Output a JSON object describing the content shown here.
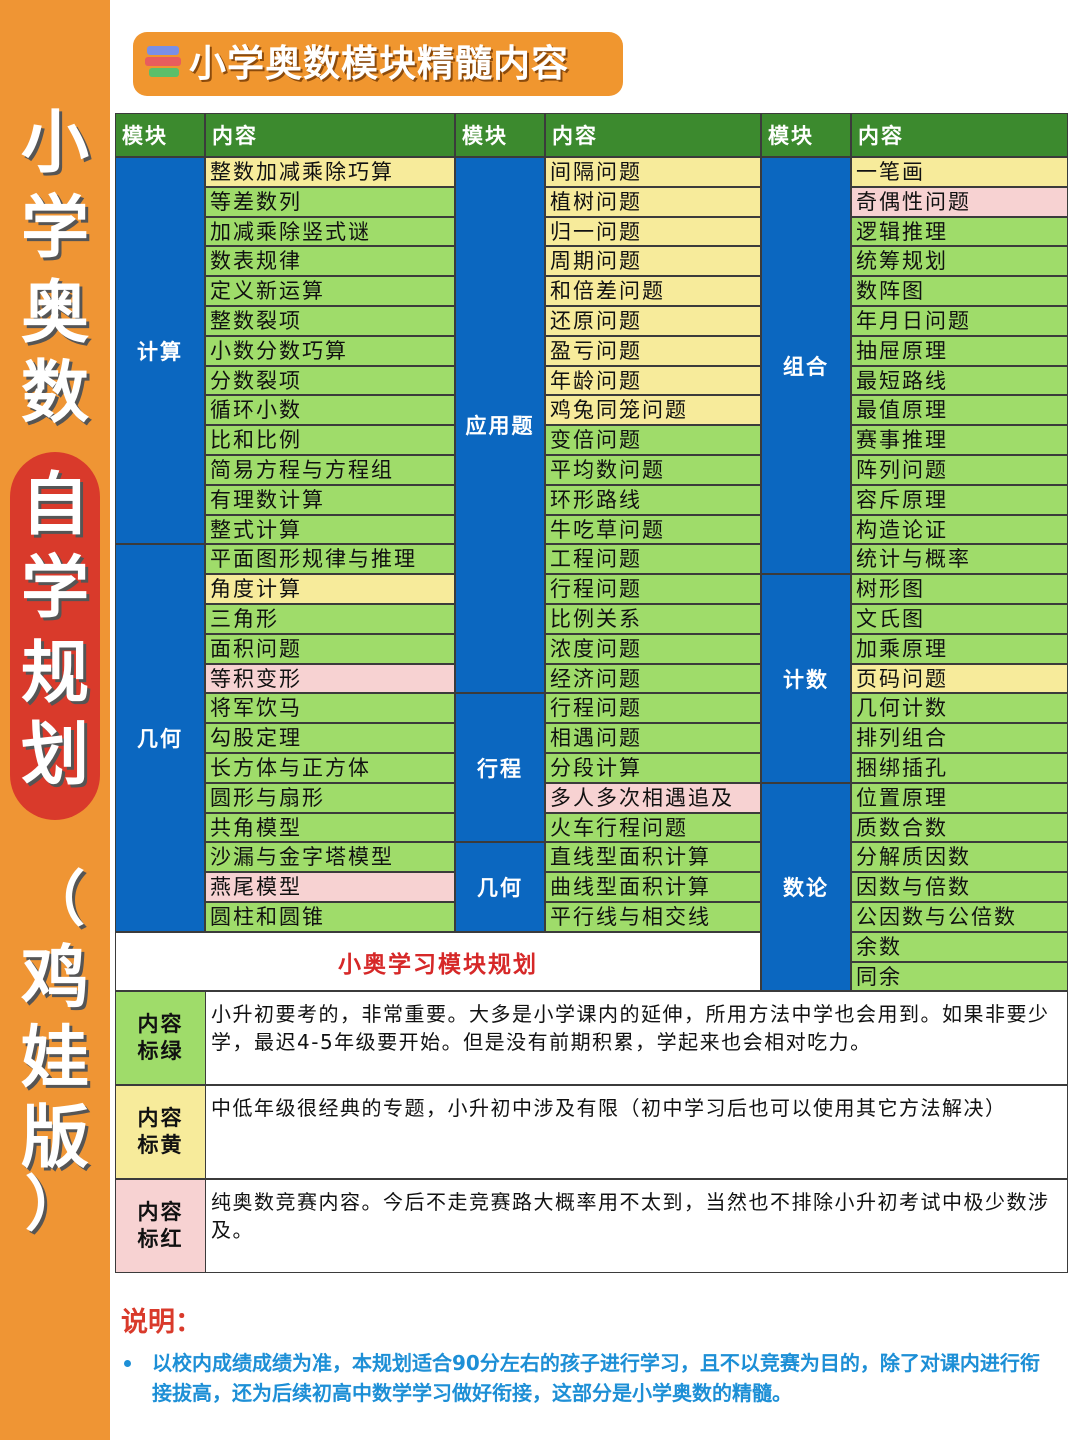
{
  "sidebar": {
    "chars": [
      "小",
      "学",
      "奥",
      "数",
      "自",
      "学",
      "规",
      "划",
      "（",
      "鸡",
      "娃",
      "版",
      "）"
    ]
  },
  "title": "小学奥数模块精髓内容",
  "table": {
    "header_module": "模块",
    "header_content": "内容",
    "col1": {
      "modules": [
        {
          "name": "计算",
          "rows": 13
        },
        {
          "name": "几何",
          "rows": 13
        }
      ],
      "items": [
        {
          "text": "整数加减乘除巧算",
          "color": "yellow"
        },
        {
          "text": "等差数列",
          "color": "green"
        },
        {
          "text": "加减乘除竖式谜",
          "color": "green"
        },
        {
          "text": "数表规律",
          "color": "green"
        },
        {
          "text": "定义新运算",
          "color": "green"
        },
        {
          "text": "整数裂项",
          "color": "green"
        },
        {
          "text": "小数分数巧算",
          "color": "green"
        },
        {
          "text": "分数裂项",
          "color": "green"
        },
        {
          "text": "循环小数",
          "color": "green"
        },
        {
          "text": "比和比例",
          "color": "green"
        },
        {
          "text": "简易方程与方程组",
          "color": "green"
        },
        {
          "text": "有理数计算",
          "color": "green"
        },
        {
          "text": "整式计算",
          "color": "green"
        },
        {
          "text": "平面图形规律与推理",
          "color": "green"
        },
        {
          "text": "角度计算",
          "color": "yellow"
        },
        {
          "text": "三角形",
          "color": "green"
        },
        {
          "text": "面积问题",
          "color": "green"
        },
        {
          "text": "等积变形",
          "color": "red"
        },
        {
          "text": "将军饮马",
          "color": "green"
        },
        {
          "text": "勾股定理",
          "color": "green"
        },
        {
          "text": "长方体与正方体",
          "color": "green"
        },
        {
          "text": "圆形与扇形",
          "color": "green"
        },
        {
          "text": "共角模型",
          "color": "green"
        },
        {
          "text": "沙漏与金字塔模型",
          "color": "green"
        },
        {
          "text": "燕尾模型",
          "color": "red"
        },
        {
          "text": "圆柱和圆锥",
          "color": "green"
        }
      ]
    },
    "col2": {
      "modules": [
        {
          "name": "应用题",
          "rows": 18
        },
        {
          "name": "行程",
          "rows": 5
        },
        {
          "name": "几何",
          "rows": 3
        }
      ],
      "items": [
        {
          "text": "间隔问题",
          "color": "yellow"
        },
        {
          "text": "植树问题",
          "color": "yellow"
        },
        {
          "text": "归一问题",
          "color": "yellow"
        },
        {
          "text": "周期问题",
          "color": "yellow"
        },
        {
          "text": "和倍差问题",
          "color": "yellow"
        },
        {
          "text": "还原问题",
          "color": "yellow"
        },
        {
          "text": "盈亏问题",
          "color": "yellow"
        },
        {
          "text": "年龄问题",
          "color": "yellow"
        },
        {
          "text": "鸡兔同笼问题",
          "color": "yellow"
        },
        {
          "text": "变倍问题",
          "color": "green"
        },
        {
          "text": "平均数问题",
          "color": "green"
        },
        {
          "text": "环形路线",
          "color": "green"
        },
        {
          "text": "牛吃草问题",
          "color": "green"
        },
        {
          "text": "工程问题",
          "color": "green"
        },
        {
          "text": "行程问题",
          "color": "green"
        },
        {
          "text": "比例关系",
          "color": "green"
        },
        {
          "text": "浓度问题",
          "color": "green"
        },
        {
          "text": "经济问题",
          "color": "green"
        },
        {
          "text": "行程问题",
          "color": "green"
        },
        {
          "text": "相遇问题",
          "color": "green"
        },
        {
          "text": "分段计算",
          "color": "green"
        },
        {
          "text": "多人多次相遇追及",
          "color": "red"
        },
        {
          "text": "火车行程问题",
          "color": "green"
        },
        {
          "text": "直线型面积计算",
          "color": "green"
        },
        {
          "text": "曲线型面积计算",
          "color": "green"
        },
        {
          "text": "平行线与相交线",
          "color": "green"
        }
      ]
    },
    "col3": {
      "modules": [
        {
          "name": "组合",
          "rows": 14
        },
        {
          "name": "计数",
          "rows": 7
        },
        {
          "name": "数论",
          "rows": 7
        }
      ],
      "items": [
        {
          "text": "一笔画",
          "color": "yellow"
        },
        {
          "text": "奇偶性问题",
          "color": "red"
        },
        {
          "text": "逻辑推理",
          "color": "green"
        },
        {
          "text": "统筹规划",
          "color": "green"
        },
        {
          "text": "数阵图",
          "color": "green"
        },
        {
          "text": "年月日问题",
          "color": "green"
        },
        {
          "text": "抽屉原理",
          "color": "green"
        },
        {
          "text": "最短路线",
          "color": "green"
        },
        {
          "text": "最值原理",
          "color": "green"
        },
        {
          "text": "赛事推理",
          "color": "green"
        },
        {
          "text": "阵列问题",
          "color": "green"
        },
        {
          "text": "容斥原理",
          "color": "green"
        },
        {
          "text": "构造论证",
          "color": "green"
        },
        {
          "text": "统计与概率",
          "color": "green"
        },
        {
          "text": "树形图",
          "color": "green"
        },
        {
          "text": "文氏图",
          "color": "green"
        },
        {
          "text": "加乘原理",
          "color": "green"
        },
        {
          "text": "页码问题",
          "color": "yellow"
        },
        {
          "text": "几何计数",
          "color": "green"
        },
        {
          "text": "排列组合",
          "color": "green"
        },
        {
          "text": "捆绑插孔",
          "color": "green"
        },
        {
          "text": "位置原理",
          "color": "green"
        },
        {
          "text": "质数合数",
          "color": "green"
        },
        {
          "text": "分解质因数",
          "color": "green"
        },
        {
          "text": "因数与倍数",
          "color": "green"
        },
        {
          "text": "公因数与公倍数",
          "color": "green"
        },
        {
          "text": "余数",
          "color": "green"
        },
        {
          "text": "同余",
          "color": "green"
        }
      ]
    },
    "plan_title": "小奥学习模块规划"
  },
  "legend": [
    {
      "label": "内容标绿",
      "color": "green",
      "text": "小升初要考的，非常重要。大多是小学课内的延伸，所用方法中学也会用到。如果非要少学，最迟4-5年级要开始。但是没有前期积累，学起来也会相对吃力。"
    },
    {
      "label": "内容标黄",
      "color": "yellow",
      "text": "中低年级很经典的专题，小升初中涉及有限（初中学习后也可以使用其它方法解决）"
    },
    {
      "label": "内容标红",
      "color": "red",
      "text": "纯奥数竞赛内容。今后不走竞赛路大概率用不太到，当然也不排除小升初考试中极少数涉及。"
    }
  ],
  "note": {
    "title": "说明：",
    "text": "以校内成绩成绩为准，本规划适合90分左右的孩子进行学习，且不以竞赛为目的，除了对课内进行衔接拔高，还为后续初高中数学学习做好衔接，这部分是小学奥数的精髓。"
  },
  "colors": {
    "sidebar": "#ef9534",
    "header": "#3c8a2e",
    "module": "#0b67c0",
    "green": "#9fdc6a",
    "yellow": "#f7eb9b",
    "red": "#f7d2d2",
    "note": "#1d8fd6"
  }
}
